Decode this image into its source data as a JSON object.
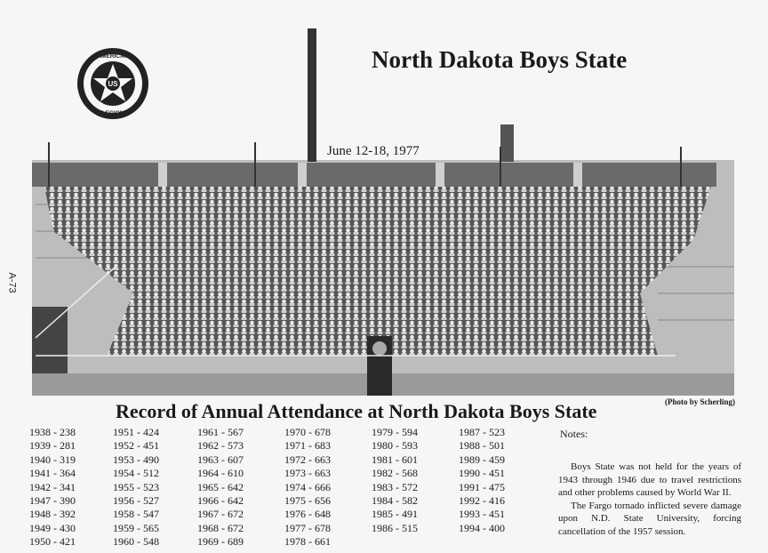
{
  "header": {
    "title": "North Dakota Boys State",
    "photo_date": "June 12-18, 1977",
    "photo_credit": "(Photo by Scherling)",
    "page_label": "A-73",
    "emblem": {
      "top": "AMERICAN",
      "center": "US",
      "bottom": "LEGION"
    }
  },
  "record": {
    "title": "Record of Annual Attendance at North Dakota Boys State",
    "columns": [
      [
        "1938 - 238",
        "1939 - 281",
        "1940 - 319",
        "1941 - 364",
        "1942 - 341",
        "1947 - 390",
        "1948 - 392",
        "1949 - 430",
        "1950 - 421"
      ],
      [
        "1951 - 424",
        "1952 - 451",
        "1953 - 490",
        "1954 - 512",
        "1955 - 523",
        "1956 - 527",
        "1958 - 547",
        "1959 - 565",
        "1960 - 548"
      ],
      [
        "1961 - 567",
        "1962 - 573",
        "1963 - 607",
        "1964 - 610",
        "1965 - 642",
        "1966 - 642",
        "1967 - 672",
        "1968 - 672",
        "1969 - 689"
      ],
      [
        "1970 - 678",
        "1971 - 683",
        "1972 - 663",
        "1973 - 663",
        "1974 - 666",
        "1975 - 656",
        "1976 - 648",
        "1977 - 678",
        "1978 - 661"
      ],
      [
        "1979 - 594",
        "1980 - 593",
        "1981 - 601",
        "1982 - 568",
        "1983 - 572",
        "1984 - 582",
        "1985 - 491",
        "1986 - 515"
      ],
      [
        "1987 - 523",
        "1988 - 501",
        "1989 - 459",
        "1990 - 451",
        "1991 - 475",
        "1992 - 416",
        "1993 - 451",
        "1994 - 400"
      ]
    ]
  },
  "notes": {
    "heading": "Notes:",
    "paragraphs": [
      "Boys State was not held for the years of 1943 through 1946 due to travel restrictions and other problems caused by World War II.",
      "The Fargo tornado inflicted severe damage upon N.D. State University, forcing cancellation of the 1957 session."
    ]
  }
}
